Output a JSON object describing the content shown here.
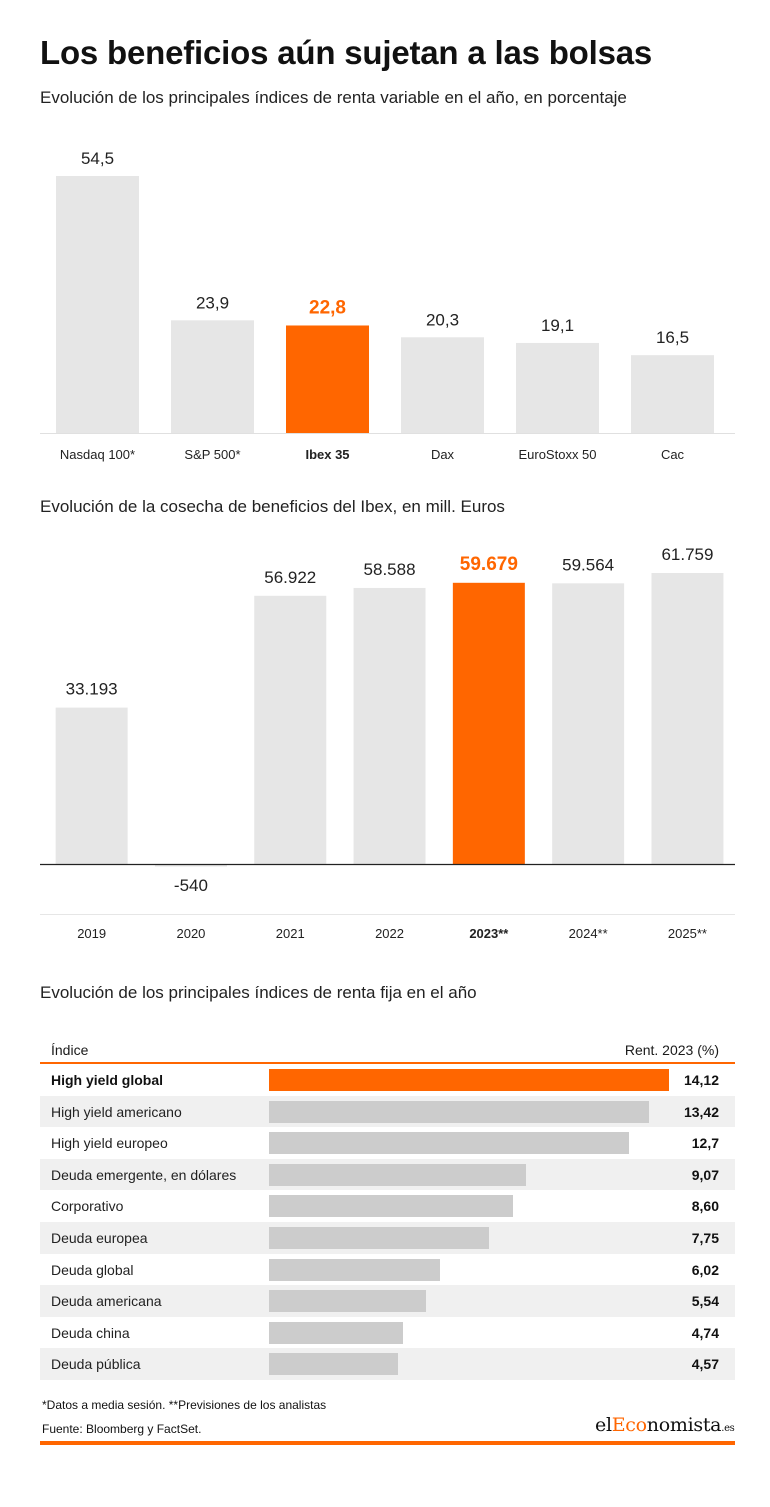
{
  "title": "Los beneficios aún sujetan a las bolsas",
  "accent_color": "#ff6600",
  "bar_color": "#e6e6e6",
  "table_bar_color": "#cccccc",
  "chart_data": [
    {
      "type": "bar",
      "title": "Evolución de los principales índices de renta variable en el año, en porcentaje",
      "categories": [
        "Nasdaq 100*",
        "S&P 500*",
        "Ibex 35",
        "Dax",
        "EuroStoxx 50",
        "Cac"
      ],
      "values": [
        54.5,
        23.9,
        22.8,
        20.3,
        19.1,
        16.5
      ],
      "value_labels": [
        "54,5",
        "23,9",
        "22,8",
        "20,3",
        "19,1",
        "16,5"
      ],
      "highlight_index": 2,
      "ylim": [
        0,
        60
      ],
      "grid": false
    },
    {
      "type": "bar",
      "title": "Evolución de la cosecha de beneficios del Ibex, en mill. Euros",
      "categories": [
        "2019",
        "2020",
        "2021",
        "2022",
        "2023**",
        "2024**",
        "2025**"
      ],
      "values": [
        33193,
        -540,
        56922,
        58588,
        59679,
        59564,
        61759
      ],
      "value_labels": [
        "33.193",
        "-540",
        "56.922",
        "58.588",
        "59.679",
        "59.564",
        "61.759"
      ],
      "highlight_index": 4,
      "ylim": [
        -1000,
        70000
      ],
      "grid": false
    },
    {
      "type": "bar",
      "orientation": "horizontal",
      "title": "Evolución de los principales índices de renta fija en el año",
      "col_headers": [
        "Índice",
        "Rent. 2023 (%)"
      ],
      "categories": [
        "High yield global",
        "High yield americano",
        "High yield europeo",
        "Deuda emergente, en dólares",
        "Corporativo",
        "Deuda europea",
        "Deuda global",
        "Deuda americana",
        "Deuda china",
        "Deuda pública"
      ],
      "values": [
        14.12,
        13.42,
        12.7,
        9.07,
        8.6,
        7.75,
        6.02,
        5.54,
        4.74,
        4.57
      ],
      "value_labels": [
        "14,12",
        "13,42",
        "12,7",
        "9,07",
        "8,60",
        "7,75",
        "6,02",
        "5,54",
        "4,74",
        "4,57"
      ],
      "highlight_index": 0,
      "xlim": [
        0,
        14.12
      ]
    }
  ],
  "footnote": "*Datos a media sesión. **Previsiones de los analistas",
  "source": "Fuente: Bloomberg y FactSet.",
  "logo": {
    "prefix": "el",
    "accent": "Eco",
    "rest": "nomista",
    "suffix": ".es"
  }
}
